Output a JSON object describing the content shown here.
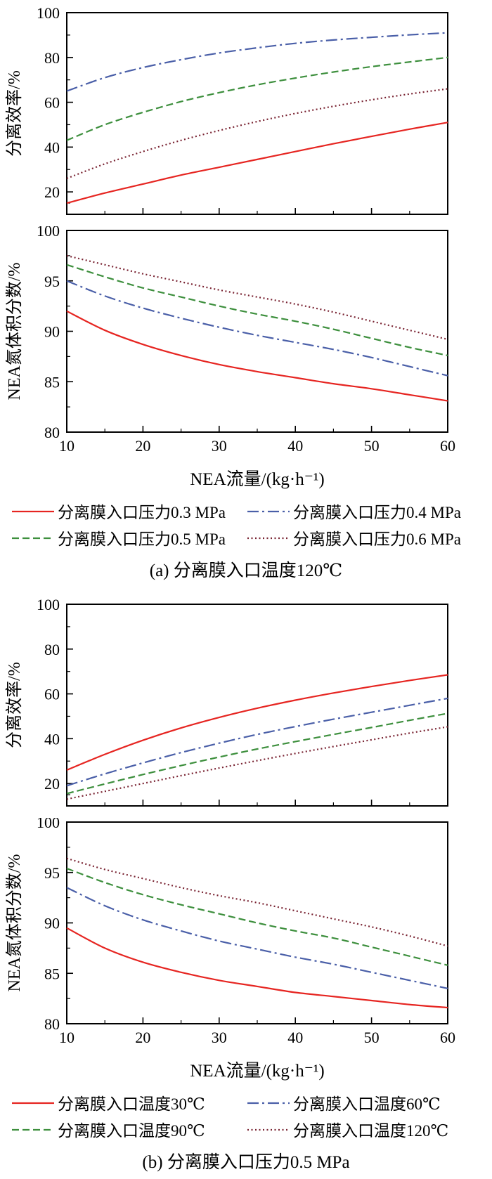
{
  "figure": {
    "panels": [
      {
        "caption": "(a) 分离膜入口温度120℃",
        "xlabel": "NEA流量/(kg·h⁻¹)",
        "legend": [
          {
            "label": "分离膜入口压力0.3 MPa",
            "color": "#e62521",
            "dash": "solid"
          },
          {
            "label": "分离膜入口压力0.4 MPa",
            "color": "#4a5fa8",
            "dash": "dashdot"
          },
          {
            "label": "分离膜入口压力0.5 MPa",
            "color": "#3d8f3d",
            "dash": "dashed"
          },
          {
            "label": "分离膜入口压力0.6 MPa",
            "color": "#7a2433",
            "dash": "dotted"
          }
        ]
      },
      {
        "caption": "(b) 分离膜入口压力0.5 MPa",
        "xlabel": "NEA流量/(kg·h⁻¹)",
        "legend": [
          {
            "label": "分离膜入口温度30℃",
            "color": "#e62521",
            "dash": "solid"
          },
          {
            "label": "分离膜入口温度60℃",
            "color": "#4a5fa8",
            "dash": "dashdot"
          },
          {
            "label": "分离膜入口温度90℃",
            "color": "#3d8f3d",
            "dash": "dashed"
          },
          {
            "label": "分离膜入口温度120℃",
            "color": "#7a2433",
            "dash": "dotted"
          }
        ]
      }
    ]
  },
  "chart_data": [
    {
      "id": "a-efficiency",
      "type": "line",
      "title": "",
      "xlabel": "NEA流量/(kg·h⁻¹)",
      "ylabel": "分离效率/%",
      "xlim": [
        10,
        60
      ],
      "ylim": [
        10,
        100
      ],
      "xticks": [
        10,
        20,
        30,
        40,
        50,
        60
      ],
      "yticks": [
        20,
        40,
        60,
        80,
        100
      ],
      "grid": false,
      "x": [
        10,
        15,
        20,
        25,
        30,
        35,
        40,
        45,
        50,
        55,
        60
      ],
      "series": [
        {
          "name": "分离膜入口压力0.3 MPa",
          "color": "#e62521",
          "dash": "solid",
          "values": [
            15,
            19.5,
            23.5,
            27.5,
            31,
            34.5,
            38,
            41.5,
            44.8,
            48,
            51
          ]
        },
        {
          "name": "分离膜入口压力0.4 MPa",
          "color": "#4a5fa8",
          "dash": "dashdot",
          "values": [
            65,
            71,
            75.5,
            79,
            82,
            84.3,
            86.3,
            87.8,
            89,
            90.1,
            91
          ]
        },
        {
          "name": "分离膜入口压力0.5 MPa",
          "color": "#3d8f3d",
          "dash": "dashed",
          "values": [
            43,
            50,
            55.5,
            60.3,
            64.3,
            67.8,
            70.8,
            73.5,
            75.9,
            78,
            80
          ]
        },
        {
          "name": "分离膜入口压力0.6 MPa",
          "color": "#7a2433",
          "dash": "dotted",
          "values": [
            26,
            32.5,
            38,
            43,
            47.4,
            51.4,
            55,
            58.2,
            61.1,
            63.7,
            66
          ]
        }
      ]
    },
    {
      "id": "a-fraction",
      "type": "line",
      "title": "",
      "xlabel": "NEA流量/(kg·h⁻¹)",
      "ylabel": "NEA氮体积分数/%",
      "xlim": [
        10,
        60
      ],
      "ylim": [
        80,
        100
      ],
      "xticks": [
        10,
        20,
        30,
        40,
        50,
        60
      ],
      "yticks": [
        80,
        85,
        90,
        95,
        100
      ],
      "grid": false,
      "x": [
        10,
        15,
        20,
        25,
        30,
        35,
        40,
        45,
        50,
        55,
        60
      ],
      "series": [
        {
          "name": "分离膜入口压力0.3 MPa",
          "color": "#e62521",
          "dash": "solid",
          "values": [
            92,
            90.1,
            88.7,
            87.6,
            86.7,
            86,
            85.4,
            84.8,
            84.3,
            83.7,
            83.1
          ]
        },
        {
          "name": "分离膜入口压力0.4 MPa",
          "color": "#4a5fa8",
          "dash": "dashdot",
          "values": [
            95,
            93.5,
            92.3,
            91.3,
            90.4,
            89.6,
            88.9,
            88.2,
            87.4,
            86.5,
            85.6
          ]
        },
        {
          "name": "分离膜入口压力0.5 MPa",
          "color": "#3d8f3d",
          "dash": "dashed",
          "values": [
            96.6,
            95.4,
            94.3,
            93.4,
            92.5,
            91.7,
            91,
            90.2,
            89.3,
            88.4,
            87.6
          ]
        },
        {
          "name": "分离膜入口压力0.6 MPa",
          "color": "#7a2433",
          "dash": "dotted",
          "values": [
            97.5,
            96.6,
            95.7,
            94.9,
            94.1,
            93.4,
            92.7,
            91.9,
            91,
            90.1,
            89.2
          ]
        }
      ]
    },
    {
      "id": "b-efficiency",
      "type": "line",
      "title": "",
      "xlabel": "NEA流量/(kg·h⁻¹)",
      "ylabel": "分离效率/%",
      "xlim": [
        10,
        60
      ],
      "ylim": [
        10,
        100
      ],
      "xticks": [
        10,
        20,
        30,
        40,
        50,
        60
      ],
      "yticks": [
        20,
        40,
        60,
        80,
        100
      ],
      "grid": false,
      "x": [
        10,
        15,
        20,
        25,
        30,
        35,
        40,
        45,
        50,
        55,
        60
      ],
      "series": [
        {
          "name": "分离膜入口温度30℃",
          "color": "#e62521",
          "dash": "solid",
          "values": [
            26,
            33,
            39.3,
            44.8,
            49.5,
            53.6,
            57.2,
            60.4,
            63.3,
            66,
            68.5
          ]
        },
        {
          "name": "分离膜入口温度60℃",
          "color": "#4a5fa8",
          "dash": "dashdot",
          "values": [
            19,
            24.3,
            29.2,
            33.8,
            38,
            41.9,
            45.4,
            48.7,
            51.8,
            54.9,
            58
          ]
        },
        {
          "name": "分离膜入口温度90℃",
          "color": "#3d8f3d",
          "dash": "dashed",
          "values": [
            15.5,
            19.8,
            24,
            28,
            31.8,
            35.4,
            38.7,
            41.9,
            45,
            48.2,
            51.3
          ]
        },
        {
          "name": "分离膜入口温度120℃",
          "color": "#7a2433",
          "dash": "dotted",
          "values": [
            13,
            16.5,
            20,
            23.5,
            26.9,
            30.2,
            33.4,
            36.5,
            39.5,
            42.5,
            45.3
          ]
        }
      ]
    },
    {
      "id": "b-fraction",
      "type": "line",
      "title": "",
      "xlabel": "NEA流量/(kg·h⁻¹)",
      "ylabel": "NEA氮体积分数/%",
      "xlim": [
        10,
        60
      ],
      "ylim": [
        80,
        100
      ],
      "xticks": [
        10,
        20,
        30,
        40,
        50,
        60
      ],
      "yticks": [
        80,
        85,
        90,
        95,
        100
      ],
      "grid": false,
      "x": [
        10,
        15,
        20,
        25,
        30,
        35,
        40,
        45,
        50,
        55,
        60
      ],
      "series": [
        {
          "name": "分离膜入口温度30℃",
          "color": "#e62521",
          "dash": "solid",
          "values": [
            89.5,
            87.5,
            86.1,
            85.1,
            84.3,
            83.7,
            83.1,
            82.7,
            82.3,
            81.9,
            81.6
          ]
        },
        {
          "name": "分离膜入口温度60℃",
          "color": "#4a5fa8",
          "dash": "dashdot",
          "values": [
            93.5,
            91.7,
            90.3,
            89.2,
            88.2,
            87.4,
            86.6,
            85.9,
            85.1,
            84.3,
            83.5
          ]
        },
        {
          "name": "分离膜入口温度90℃",
          "color": "#3d8f3d",
          "dash": "dashed",
          "values": [
            95.4,
            94,
            92.8,
            91.8,
            90.9,
            90,
            89.2,
            88.5,
            87.6,
            86.7,
            85.8
          ]
        },
        {
          "name": "分离膜入口温度120℃",
          "color": "#7a2433",
          "dash": "dotted",
          "values": [
            96.4,
            95.3,
            94.4,
            93.5,
            92.7,
            92,
            91.2,
            90.4,
            89.6,
            88.7,
            87.7
          ]
        }
      ]
    }
  ]
}
